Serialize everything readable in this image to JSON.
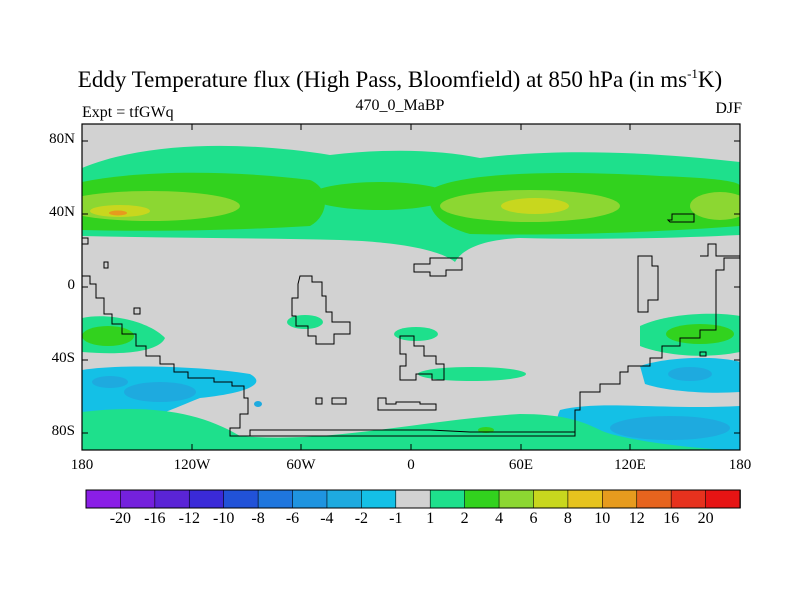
{
  "header": {
    "title_pre": "Eddy Temperature flux (High Pass, Bloomfield) at 850 hPa (in ms",
    "title_sup": "-1",
    "title_post": "K)",
    "left_label": "Expt = tfGWq",
    "center_label": "470_0_MaBP",
    "right_label": "DJF"
  },
  "map": {
    "y_ticks": [
      "80N",
      "40N",
      "0",
      "40S",
      "80S"
    ],
    "x_ticks": [
      "180",
      "120W",
      "60W",
      "0",
      "60E",
      "120E",
      "180"
    ],
    "background_color": "#d2d2d2"
  },
  "colorbar": {
    "labels": [
      "-20",
      "-16",
      "-12",
      "-10",
      "-8",
      "-6",
      "-4",
      "-2",
      "-1",
      "1",
      "2",
      "4",
      "6",
      "8",
      "10",
      "12",
      "16",
      "20"
    ],
    "colors": [
      "#8a1ee6",
      "#7421dd",
      "#5a24d6",
      "#3a2ad8",
      "#2152d8",
      "#1f76de",
      "#1f94e0",
      "#1eaadf",
      "#14c0e6",
      "#d2d2d2",
      "#1ee08c",
      "#32d21e",
      "#8cd732",
      "#c8d71e",
      "#e6c31e",
      "#e69b1e",
      "#e6641e",
      "#e6321e",
      "#e61414"
    ]
  }
}
